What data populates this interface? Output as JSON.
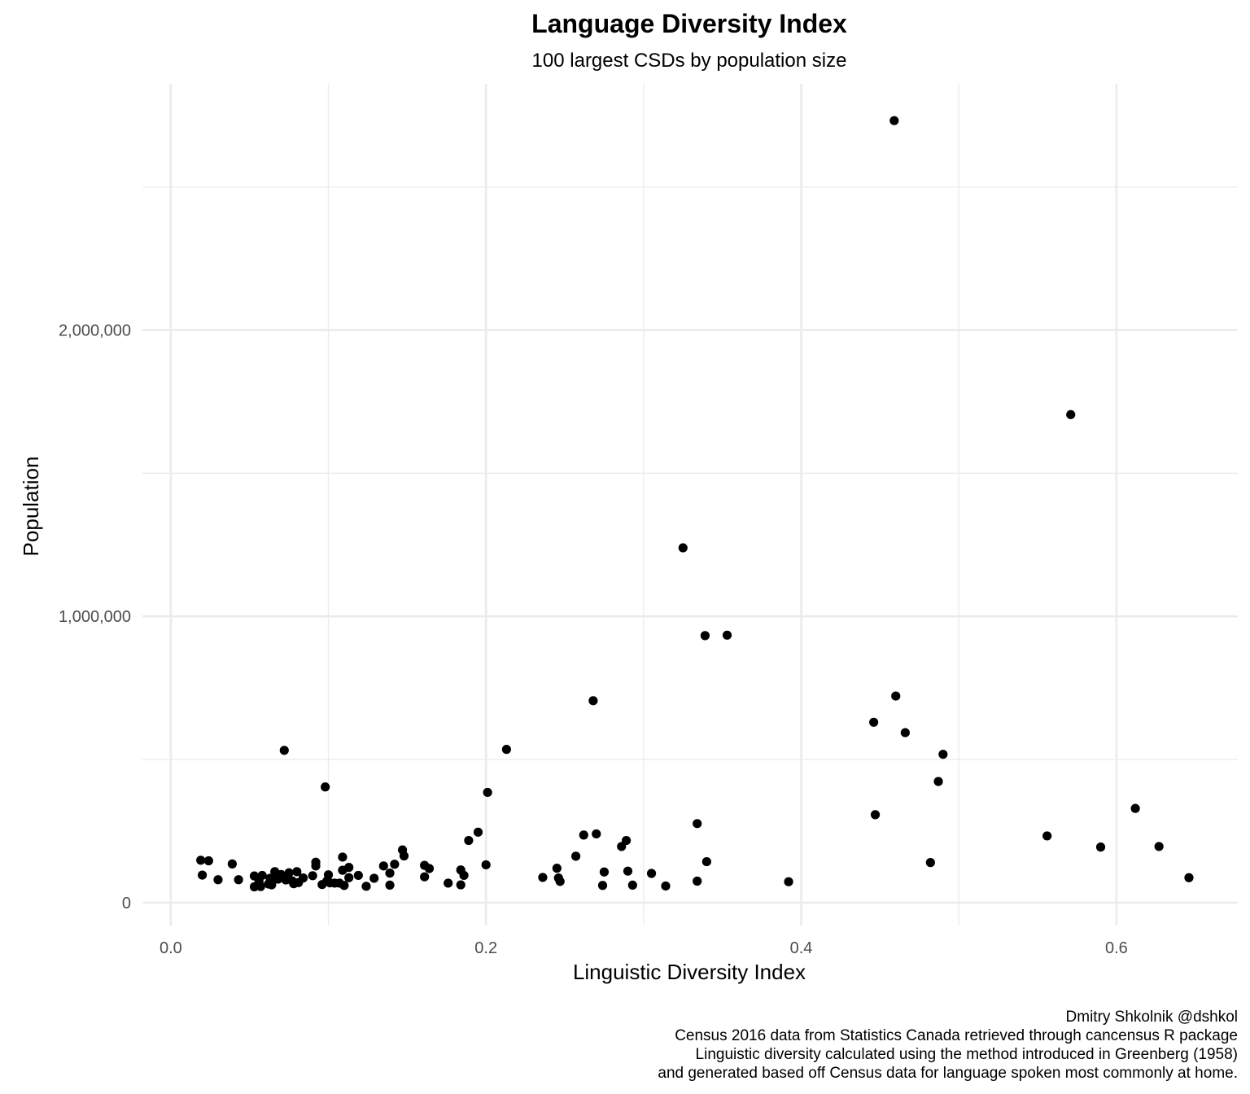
{
  "chart_data": {
    "type": "scatter",
    "title": "Language Diversity Index",
    "subtitle": "100 largest CSDs by population size",
    "xlabel": "Linguistic Diversity Index",
    "ylabel": "Population",
    "xlim": [
      -0.018,
      0.677
    ],
    "ylim": [
      -80000,
      2860000
    ],
    "x_major_ticks": [
      0.0,
      0.2,
      0.4,
      0.6
    ],
    "x_tick_labels": [
      "0.0",
      "0.2",
      "0.4",
      "0.6"
    ],
    "x_minor_ticks": [
      0.1,
      0.3,
      0.5
    ],
    "y_major_ticks": [
      0,
      1000000,
      2000000
    ],
    "y_tick_labels": [
      "0",
      "1,000,000",
      "2,000,000"
    ],
    "y_minor_ticks": [
      500000,
      1500000,
      2500000
    ],
    "grid": true,
    "legend": "none",
    "point_color": "#000000",
    "caption": [
      "Dmitry Shkolnik @dshkol",
      "Census 2016 data from Statistics Canada retrieved through cancensus R package",
      "Linguistic diversity calculated using the method introduced in Greenberg (1958)",
      "and generated based off Census data for language spoken most commonly at home."
    ],
    "points": [
      {
        "x": 0.459,
        "y": 2731571
      },
      {
        "x": 0.571,
        "y": 1704694
      },
      {
        "x": 0.325,
        "y": 1239220
      },
      {
        "x": 0.339,
        "y": 932546
      },
      {
        "x": 0.353,
        "y": 934243
      },
      {
        "x": 0.268,
        "y": 705244
      },
      {
        "x": 0.46,
        "y": 721599
      },
      {
        "x": 0.446,
        "y": 630000
      },
      {
        "x": 0.466,
        "y": 593638
      },
      {
        "x": 0.072,
        "y": 531902
      },
      {
        "x": 0.213,
        "y": 535154
      },
      {
        "x": 0.49,
        "y": 518000
      },
      {
        "x": 0.098,
        "y": 404000
      },
      {
        "x": 0.487,
        "y": 423000
      },
      {
        "x": 0.201,
        "y": 385000
      },
      {
        "x": 0.447,
        "y": 307000
      },
      {
        "x": 0.612,
        "y": 329000
      },
      {
        "x": 0.334,
        "y": 276000
      },
      {
        "x": 0.195,
        "y": 246000
      },
      {
        "x": 0.27,
        "y": 240000
      },
      {
        "x": 0.262,
        "y": 236000
      },
      {
        "x": 0.556,
        "y": 233000
      },
      {
        "x": 0.189,
        "y": 217000
      },
      {
        "x": 0.289,
        "y": 217000
      },
      {
        "x": 0.286,
        "y": 196000
      },
      {
        "x": 0.59,
        "y": 194000
      },
      {
        "x": 0.627,
        "y": 196000
      },
      {
        "x": 0.147,
        "y": 184000
      },
      {
        "x": 0.148,
        "y": 163000
      },
      {
        "x": 0.257,
        "y": 162000
      },
      {
        "x": 0.109,
        "y": 159000
      },
      {
        "x": 0.019,
        "y": 148000
      },
      {
        "x": 0.024,
        "y": 146000
      },
      {
        "x": 0.092,
        "y": 141000
      },
      {
        "x": 0.34,
        "y": 143000
      },
      {
        "x": 0.482,
        "y": 140000
      },
      {
        "x": 0.039,
        "y": 135000
      },
      {
        "x": 0.142,
        "y": 134000
      },
      {
        "x": 0.161,
        "y": 130000
      },
      {
        "x": 0.135,
        "y": 128000
      },
      {
        "x": 0.092,
        "y": 128000
      },
      {
        "x": 0.113,
        "y": 123000
      },
      {
        "x": 0.2,
        "y": 132000
      },
      {
        "x": 0.164,
        "y": 119000
      },
      {
        "x": 0.245,
        "y": 120000
      },
      {
        "x": 0.109,
        "y": 113000
      },
      {
        "x": 0.184,
        "y": 114000
      },
      {
        "x": 0.066,
        "y": 108000
      },
      {
        "x": 0.075,
        "y": 104000
      },
      {
        "x": 0.08,
        "y": 108000
      },
      {
        "x": 0.139,
        "y": 103000
      },
      {
        "x": 0.275,
        "y": 107000
      },
      {
        "x": 0.29,
        "y": 110000
      },
      {
        "x": 0.305,
        "y": 102000
      },
      {
        "x": 0.02,
        "y": 96000
      },
      {
        "x": 0.058,
        "y": 95000
      },
      {
        "x": 0.053,
        "y": 93000
      },
      {
        "x": 0.07,
        "y": 98000
      },
      {
        "x": 0.09,
        "y": 94000
      },
      {
        "x": 0.1,
        "y": 97000
      },
      {
        "x": 0.119,
        "y": 95000
      },
      {
        "x": 0.186,
        "y": 95000
      },
      {
        "x": 0.161,
        "y": 90000
      },
      {
        "x": 0.236,
        "y": 88000
      },
      {
        "x": 0.246,
        "y": 86000
      },
      {
        "x": 0.646,
        "y": 87000
      },
      {
        "x": 0.03,
        "y": 80000
      },
      {
        "x": 0.043,
        "y": 80000
      },
      {
        "x": 0.063,
        "y": 85000
      },
      {
        "x": 0.068,
        "y": 82000
      },
      {
        "x": 0.084,
        "y": 86000
      },
      {
        "x": 0.113,
        "y": 87000
      },
      {
        "x": 0.129,
        "y": 85000
      },
      {
        "x": 0.073,
        "y": 79000
      },
      {
        "x": 0.077,
        "y": 76000
      },
      {
        "x": 0.099,
        "y": 75000
      },
      {
        "x": 0.334,
        "y": 75000
      },
      {
        "x": 0.392,
        "y": 73000
      },
      {
        "x": 0.247,
        "y": 74000
      },
      {
        "x": 0.056,
        "y": 74000
      },
      {
        "x": 0.063,
        "y": 70000
      },
      {
        "x": 0.081,
        "y": 70000
      },
      {
        "x": 0.101,
        "y": 69000
      },
      {
        "x": 0.104,
        "y": 68000
      },
      {
        "x": 0.107,
        "y": 68000
      },
      {
        "x": 0.176,
        "y": 68000
      },
      {
        "x": 0.062,
        "y": 65000
      },
      {
        "x": 0.078,
        "y": 66000
      },
      {
        "x": 0.055,
        "y": 60000
      },
      {
        "x": 0.11,
        "y": 60000
      },
      {
        "x": 0.139,
        "y": 61000
      },
      {
        "x": 0.184,
        "y": 62000
      },
      {
        "x": 0.274,
        "y": 60000
      },
      {
        "x": 0.293,
        "y": 61000
      },
      {
        "x": 0.314,
        "y": 58000
      },
      {
        "x": 0.124,
        "y": 57000
      },
      {
        "x": 0.057,
        "y": 56000
      },
      {
        "x": 0.053,
        "y": 55000
      },
      {
        "x": 0.064,
        "y": 62000
      },
      {
        "x": 0.096,
        "y": 63000
      }
    ]
  }
}
